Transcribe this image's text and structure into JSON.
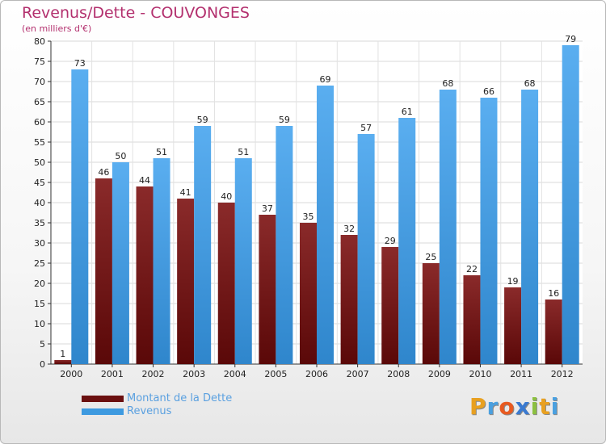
{
  "chart_data": {
    "type": "bar",
    "title": "Revenus/Dette - COUVONGES",
    "subtitle": "(en milliers d'€)",
    "categories": [
      "2000",
      "2001",
      "2002",
      "2003",
      "2004",
      "2005",
      "2006",
      "2007",
      "2008",
      "2009",
      "2010",
      "2011",
      "2012"
    ],
    "series": [
      {
        "name": "Montant de la Dette",
        "color": "#7a1a1a",
        "values": [
          1,
          46,
          44,
          41,
          40,
          37,
          35,
          32,
          29,
          25,
          22,
          19,
          16
        ]
      },
      {
        "name": "Revenus",
        "color": "#3d9ae0",
        "values": [
          73,
          50,
          51,
          59,
          51,
          59,
          69,
          57,
          61,
          68,
          66,
          68,
          79
        ]
      }
    ],
    "ylim": [
      0,
      80
    ],
    "yticks": [
      0,
      5,
      10,
      15,
      20,
      25,
      30,
      35,
      40,
      45,
      50,
      55,
      60,
      65,
      70,
      75,
      80
    ],
    "grid": true,
    "legend_position": "bottom-left"
  },
  "logo": {
    "letters": [
      "P",
      "r",
      "o",
      "x",
      "i",
      "t",
      "i"
    ],
    "colors": [
      "#e8a020",
      "#4aa0e0",
      "#e85a20",
      "#3a7ad0",
      "#8cc040",
      "#e8a020",
      "#4aa0e0"
    ]
  }
}
